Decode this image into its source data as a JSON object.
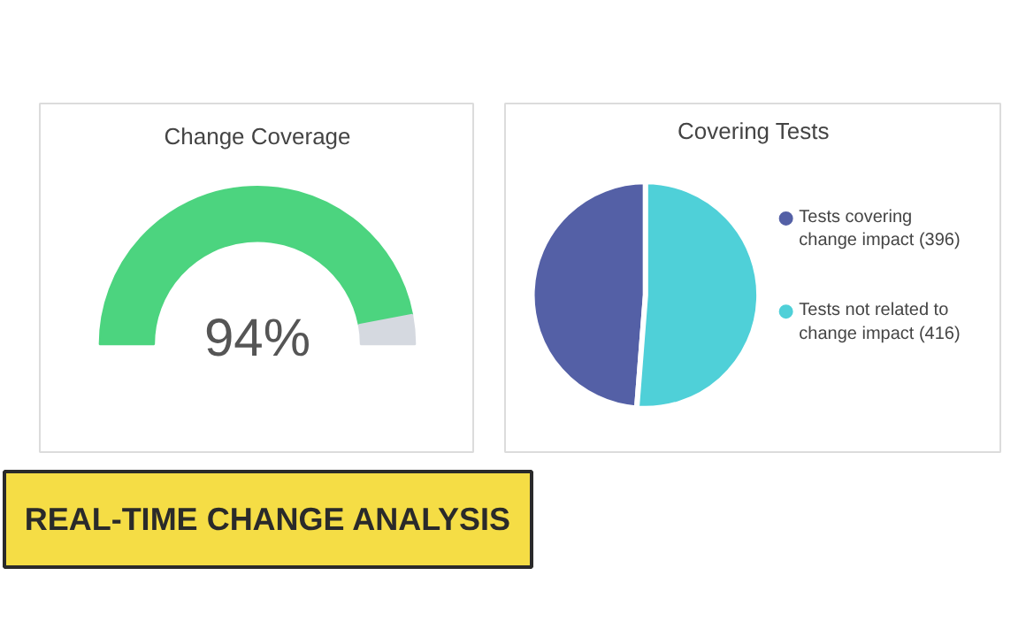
{
  "chart_data": [
    {
      "type": "donut",
      "title": "Change Coverage",
      "categories": [
        null,
        null
      ],
      "values": [
        94,
        6
      ],
      "colors": [
        "#4cd47f",
        "#d5d9e0"
      ],
      "annotations": [
        "94%",
        "REAL-TIME CHANGE ANALYSIS"
      ]
    },
    {
      "type": "pie",
      "title": "Covering Tests",
      "categories": [
        "Tests covering change impact (396)",
        "Tests not related to change impact (416)"
      ],
      "values": [
        396,
        416
      ],
      "colors": [
        "#5460a6",
        "#4fd0d8"
      ],
      "legend": "right"
    }
  ]
}
